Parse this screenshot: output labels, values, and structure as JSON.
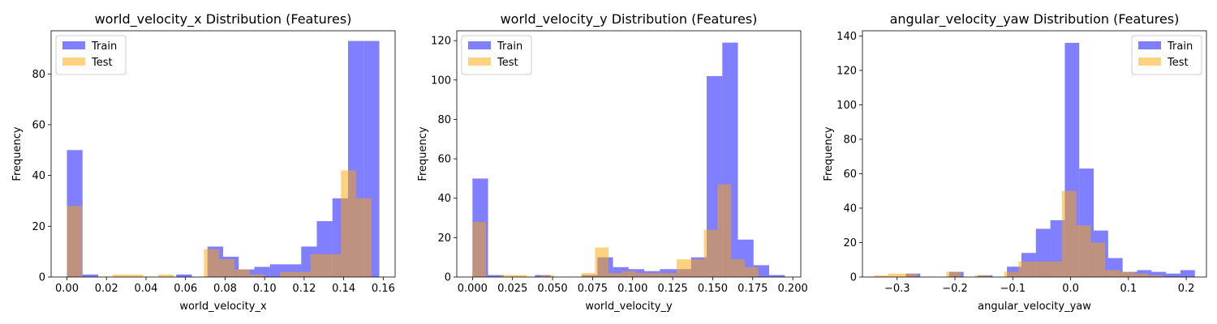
{
  "chart_data": [
    {
      "type": "bar",
      "title": "world_velocity_x Distribution (Features)",
      "xlabel": "world_velocity_x",
      "ylabel": "Frequency",
      "xlim": [
        -0.008,
        0.166
      ],
      "ylim": [
        0,
        97
      ],
      "xticks": [
        0.0,
        0.02,
        0.04,
        0.06,
        0.08,
        0.1,
        0.12,
        0.14,
        0.16
      ],
      "xtick_labels": [
        "0.00",
        "0.02",
        "0.04",
        "0.06",
        "0.08",
        "0.10",
        "0.12",
        "0.14",
        "0.16"
      ],
      "yticks": [
        0,
        20,
        40,
        60,
        80
      ],
      "ytick_labels": [
        "0",
        "20",
        "40",
        "60",
        "80"
      ],
      "legend_position": "top-left",
      "series": [
        {
          "name": "Train",
          "color": "#0000ff",
          "alpha": 0.5,
          "bin_edges": [
            0.0,
            0.0079,
            0.0158,
            0.0237,
            0.0316,
            0.0395,
            0.0474,
            0.0553,
            0.0632,
            0.0711,
            0.079,
            0.0869,
            0.0948,
            0.1027,
            0.1106,
            0.1185,
            0.1264,
            0.1343,
            0.1422,
            0.1501,
            0.158
          ],
          "counts": [
            50,
            1,
            0,
            0,
            0,
            0,
            0,
            1,
            0,
            12,
            8,
            3,
            4,
            5,
            5,
            12,
            22,
            31,
            93,
            93
          ]
        },
        {
          "name": "Test",
          "color": "#ffa500",
          "alpha": 0.5,
          "bin_edges": [
            0.0,
            0.0077,
            0.0154,
            0.0231,
            0.0308,
            0.0385,
            0.0462,
            0.0539,
            0.0616,
            0.0693,
            0.077,
            0.0847,
            0.0924,
            0.1001,
            0.1078,
            0.1155,
            0.1232,
            0.1309,
            0.1386,
            0.1463,
            0.154
          ],
          "counts": [
            28,
            0,
            0,
            1,
            1,
            0,
            1,
            0,
            0,
            11,
            7,
            3,
            1,
            0,
            2,
            2,
            9,
            9,
            42,
            31
          ]
        }
      ]
    },
    {
      "type": "bar",
      "title": "world_velocity_y Distribution (Features)",
      "xlabel": "world_velocity_y",
      "ylabel": "Frequency",
      "xlim": [
        -0.0098,
        0.205
      ],
      "ylim": [
        0,
        125
      ],
      "xticks": [
        0.0,
        0.025,
        0.05,
        0.075,
        0.1,
        0.125,
        0.15,
        0.175,
        0.2
      ],
      "xtick_labels": [
        "0.000",
        "0.025",
        "0.050",
        "0.075",
        "0.100",
        "0.125",
        "0.150",
        "0.175",
        "0.200"
      ],
      "yticks": [
        0,
        20,
        40,
        60,
        80,
        100,
        120
      ],
      "ytick_labels": [
        "0",
        "20",
        "40",
        "60",
        "80",
        "100",
        "120"
      ],
      "legend_position": "top-left",
      "series": [
        {
          "name": "Train",
          "color": "#0000ff",
          "alpha": 0.5,
          "bin_edges": [
            0.0,
            0.00975,
            0.0195,
            0.02925,
            0.039,
            0.04875,
            0.0585,
            0.06825,
            0.078,
            0.08775,
            0.0975,
            0.10725,
            0.117,
            0.12675,
            0.1365,
            0.14625,
            0.156,
            0.16575,
            0.1755,
            0.18525,
            0.195
          ],
          "counts": [
            50,
            1,
            0,
            0,
            1,
            0,
            0,
            1,
            10,
            5,
            4,
            3,
            4,
            4,
            10,
            102,
            119,
            19,
            6,
            1
          ]
        },
        {
          "name": "Test",
          "color": "#ffa500",
          "alpha": 0.5,
          "bin_edges": [
            0.0,
            0.0085,
            0.017,
            0.0255,
            0.034,
            0.0425,
            0.051,
            0.0595,
            0.068,
            0.0765,
            0.085,
            0.0935,
            0.102,
            0.1105,
            0.119,
            0.1275,
            0.136,
            0.1445,
            0.153,
            0.1615,
            0.17,
            0.1785
          ],
          "counts": [
            28,
            0,
            1,
            1,
            0,
            1,
            0,
            0,
            2,
            15,
            2,
            3,
            2,
            2,
            2,
            9,
            9,
            24,
            47,
            9,
            5
          ]
        }
      ]
    },
    {
      "type": "bar",
      "title": "angular_velocity_yaw Distribution (Features)",
      "xlabel": "angular_velocity_yaw",
      "ylabel": "Frequency",
      "xlim": [
        -0.36,
        0.235
      ],
      "ylim": [
        0,
        143
      ],
      "xticks": [
        -0.3,
        -0.2,
        -0.1,
        0.0,
        0.1,
        0.2
      ],
      "xtick_labels": [
        "−0.3",
        "−0.2",
        "−0.1",
        "0.0",
        "0.1",
        "0.2"
      ],
      "yticks": [
        0,
        20,
        40,
        60,
        80,
        100,
        120,
        140
      ],
      "ytick_labels": [
        "0",
        "20",
        "40",
        "60",
        "80",
        "100",
        "120",
        "140"
      ],
      "legend_position": "top-right",
      "series": [
        {
          "name": "Train",
          "color": "#0000ff",
          "alpha": 0.5,
          "bin_edges": [
            -0.285,
            -0.26,
            -0.235,
            -0.21,
            -0.185,
            -0.16,
            -0.135,
            -0.11,
            -0.085,
            -0.06,
            -0.035,
            -0.01,
            0.015,
            0.04,
            0.065,
            0.09,
            0.115,
            0.14,
            0.165,
            0.19,
            0.215
          ],
          "counts": [
            2,
            0,
            0,
            3,
            0,
            1,
            0,
            6,
            14,
            28,
            33,
            136,
            63,
            27,
            11,
            3,
            4,
            3,
            2,
            4
          ]
        },
        {
          "name": "Test",
          "color": "#ffa500",
          "alpha": 0.5,
          "bin_edges": [
            -0.34,
            -0.315,
            -0.29,
            -0.265,
            -0.24,
            -0.215,
            -0.19,
            -0.165,
            -0.14,
            -0.115,
            -0.09,
            -0.065,
            -0.04,
            -0.015,
            0.01,
            0.035,
            0.06,
            0.085,
            0.11,
            0.135,
            0.16,
            0.185
          ],
          "counts": [
            1,
            2,
            2,
            0,
            0,
            3,
            0,
            1,
            0,
            3,
            9,
            9,
            9,
            50,
            30,
            20,
            4,
            3,
            2,
            1,
            0
          ]
        }
      ]
    }
  ]
}
